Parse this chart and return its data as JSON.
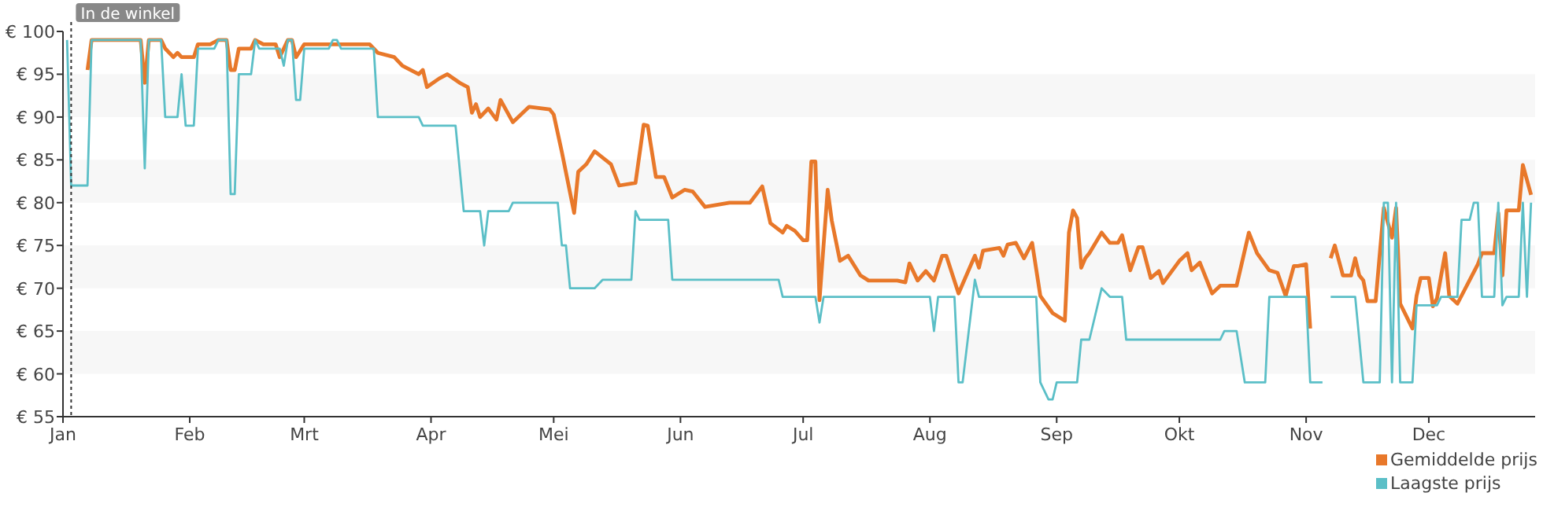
{
  "chart_data": {
    "type": "line",
    "xlim": [
      "--01-01",
      "--12-27"
    ],
    "xticks": [
      {
        "value": "--01-01",
        "label": "Jan"
      },
      {
        "value": "--02-01",
        "label": "Feb"
      },
      {
        "value": "--03-01",
        "label": "Mrt"
      },
      {
        "value": "--04-01",
        "label": "Apr"
      },
      {
        "value": "--05-01",
        "label": "Mei"
      },
      {
        "value": "--06-01",
        "label": "Jun"
      },
      {
        "value": "--07-01",
        "label": "Jul"
      },
      {
        "value": "--08-01",
        "label": "Aug"
      },
      {
        "value": "--09-01",
        "label": "Sep"
      },
      {
        "value": "--10-01",
        "label": "Okt"
      },
      {
        "value": "--11-01",
        "label": "Nov"
      },
      {
        "value": "--12-01",
        "label": "Dec"
      }
    ],
    "ylim": [
      55,
      100
    ],
    "yticks": [
      {
        "value": 55,
        "label": "€ 55"
      },
      {
        "value": 60,
        "label": "€ 60"
      },
      {
        "value": 65,
        "label": "€ 65"
      },
      {
        "value": 70,
        "label": "€ 70"
      },
      {
        "value": 75,
        "label": "€ 75"
      },
      {
        "value": 80,
        "label": "€ 80"
      },
      {
        "value": 85,
        "label": "€ 85"
      },
      {
        "value": 90,
        "label": "€ 90"
      },
      {
        "value": 95,
        "label": "€ 95"
      },
      {
        "value": 100,
        "label": "€ 100"
      }
    ],
    "legend": "bottom right",
    "bands": [
      {
        "axis": "y",
        "from": 60,
        "to": 65,
        "color": "#f7f7f7"
      },
      {
        "axis": "y",
        "from": 70,
        "to": 75,
        "color": "#f7f7f7"
      },
      {
        "axis": "y",
        "from": 80,
        "to": 85,
        "color": "#f7f7f7"
      },
      {
        "axis": "y",
        "from": 90,
        "to": 95,
        "color": "#f7f7f7"
      }
    ],
    "marker": "none",
    "line_style": "solid",
    "ref_lines": [
      {
        "axis": "x",
        "value": "--01-03",
        "label": "In de winkel",
        "line_style": "dotted",
        "color": "#333333"
      }
    ],
    "series": [
      {
        "name": "Gemiddelde prijs",
        "color": "#e8782a",
        "x": [
          "--01-07",
          "--01-08",
          "--01-20",
          "--01-21",
          "--01-22",
          "--01-25",
          "--01-26",
          "--01-28",
          "--01-29",
          "--01-30",
          "--02-02",
          "--02-03",
          "--02-06",
          "--02-08",
          "--02-10",
          "--02-11",
          "--02-12",
          "--02-13",
          "--02-16",
          "--02-17",
          "--02-19",
          "--02-22",
          "--02-23",
          "--02-25",
          "--02-26",
          "--02-27",
          "--03-01",
          "--03-17",
          "--03-19",
          "--03-23",
          "--03-25",
          "--03-29",
          "--03-30",
          "--03-31",
          "--04-03",
          "--04-05",
          "--04-08",
          "--04-10",
          "--04-11",
          "--04-12",
          "--04-13",
          "--04-15",
          "--04-17",
          "--04-18",
          "--04-21",
          "--04-25",
          "--04-30",
          "--05-01",
          "--05-03",
          "--05-06",
          "--05-07",
          "--05-09",
          "--05-11",
          "--05-15",
          "--05-17",
          "--05-21",
          "--05-23",
          "--05-24",
          "--05-26",
          "--05-28",
          "--05-30",
          "--06-02",
          "--06-04",
          "--06-07",
          "--06-13",
          "--06-15",
          "--06-18",
          "--06-21",
          "--06-23",
          "--06-26",
          "--06-27",
          "--06-29",
          "--07-01",
          "--07-02",
          "--07-03",
          "--07-04",
          "--07-05",
          "--07-07",
          "--07-08",
          "--07-10",
          "--07-12",
          "--07-15",
          "--07-17",
          "--07-24",
          "--07-26",
          "--07-27",
          "--07-29",
          "--07-31",
          "--08-02",
          "--08-04",
          "--08-05",
          "--08-08",
          "--08-12",
          "--08-13",
          "--08-14",
          "--08-18",
          "--08-19",
          "--08-20",
          "--08-22",
          "--08-24",
          "--08-26",
          "--08-28",
          "--08-31",
          "--09-03",
          "--09-04",
          "--09-05",
          "--09-06",
          "--09-07",
          "--09-08",
          "--09-09",
          "--09-12",
          "--09-14",
          "--09-16",
          "--09-17",
          "--09-19",
          "--09-21",
          "--09-22",
          "--09-24",
          "--09-26",
          "--09-27",
          "--10-01",
          "--10-03",
          "--10-04",
          "--10-06",
          "--10-09",
          "--10-11",
          "--10-15",
          "--10-18",
          "--10-20",
          "--10-23",
          "--10-25",
          "--10-27",
          "--10-29",
          "--10-30",
          "--11-01",
          "--11-02",
          "--11-05",
          "--11-07",
          "--11-08",
          "--11-10",
          "--11-12",
          "--11-13",
          "--11-14",
          "--11-15",
          "--11-16",
          "--11-18",
          "--11-20",
          "--11-22",
          "--11-23",
          "--11-24",
          "--11-27",
          "--11-28",
          "--11-29",
          "--12-01",
          "--12-02",
          "--12-03",
          "--12-05",
          "--12-06",
          "--12-08",
          "--12-13",
          "--12-14",
          "--12-17",
          "--12-18",
          "--12-19",
          "--12-20",
          "--12-23",
          "--12-24",
          "--12-26"
        ],
        "values": [
          95.5,
          99,
          99,
          94,
          99,
          99,
          98,
          97,
          97.5,
          97,
          97,
          98.5,
          98.5,
          99,
          99,
          95.5,
          95.5,
          98,
          98,
          99,
          98.5,
          98.5,
          97,
          99,
          99,
          97,
          98.5,
          98.5,
          97.5,
          97,
          96,
          95,
          95.5,
          93.5,
          94.5,
          95,
          94,
          93.5,
          90.5,
          91.5,
          90,
          91,
          89.7,
          92,
          89.4,
          91.2,
          90.9,
          90.3,
          85.9,
          78.8,
          83.6,
          84.5,
          86,
          84.5,
          82,
          82.3,
          89.1,
          89,
          83,
          83,
          80.6,
          81.5,
          81.3,
          79.5,
          80,
          80,
          80,
          81.9,
          77.6,
          76.5,
          77.3,
          76.7,
          75.6,
          75.6,
          84.8,
          84.8,
          68.6,
          81.5,
          77.9,
          73.2,
          73.8,
          71.5,
          70.9,
          70.9,
          70.7,
          72.9,
          70.9,
          72,
          70.9,
          73.8,
          73.8,
          69.4,
          73.8,
          72.4,
          74.4,
          74.7,
          73.8,
          75.1,
          75.3,
          73.5,
          75.3,
          69.1,
          67.1,
          66.2,
          76.5,
          79.1,
          78.2,
          72.4,
          73.5,
          74.1,
          76.5,
          75.3,
          75.3,
          76.2,
          72.1,
          74.8,
          74.8,
          71.2,
          72,
          70.6,
          73.2,
          74.1,
          72.1,
          73,
          69.4,
          70.3,
          70.3,
          76.5,
          74.1,
          72.1,
          71.8,
          69.1,
          72.6,
          72.6,
          72.8,
          65.3,
          null,
          73.5,
          75,
          71.5,
          71.5,
          73.5,
          71.5,
          70.9,
          68.5,
          68.5,
          79.4,
          75.9,
          79.4,
          68.2,
          65.3,
          69.1,
          71.2,
          71.2,
          67.9,
          68.8,
          74.1,
          69.1,
          68.2,
          72.8,
          74.1,
          74.1,
          78.8,
          71.5,
          79.1,
          79.1,
          84.4,
          80.9
        ]
      },
      {
        "name": "Laagste prijs",
        "color": "#5bbfc7",
        "x": [
          "--01-02",
          "--01-03",
          "--01-07",
          "--01-08",
          "--01-20",
          "--01-21",
          "--01-22",
          "--01-25",
          "--01-26",
          "--01-29",
          "--01-30",
          "--01-31",
          "--02-02",
          "--02-03",
          "--02-07",
          "--02-08",
          "--02-10",
          "--02-11",
          "--02-12",
          "--02-13",
          "--02-16",
          "--02-17",
          "--02-18",
          "--02-23",
          "--02-24",
          "--02-25",
          "--02-26",
          "--02-27",
          "--02-28",
          "--03-01",
          "--03-07",
          "--03-08",
          "--03-09",
          "--03-10",
          "--03-18",
          "--03-19",
          "--03-29",
          "--03-30",
          "--04-07",
          "--04-09",
          "--04-13",
          "--04-14",
          "--04-15",
          "--04-20",
          "--04-21",
          "--05-02",
          "--05-03",
          "--05-04",
          "--05-05",
          "--05-11",
          "--05-13",
          "--05-20",
          "--05-21",
          "--05-22",
          "--05-29",
          "--05-30",
          "--06-25",
          "--06-26",
          "--07-04",
          "--07-05",
          "--07-06",
          "--08-01",
          "--08-02",
          "--08-03",
          "--08-07",
          "--08-08",
          "--08-09",
          "--08-12",
          "--08-13",
          "--08-27",
          "--08-28",
          "--08-30",
          "--08-31",
          "--09-01",
          "--09-06",
          "--09-07",
          "--09-09",
          "--09-10",
          "--09-11",
          "--09-12",
          "--09-14",
          "--09-17",
          "--09-18",
          "--10-11",
          "--10-12",
          "--10-15",
          "--10-17",
          "--10-22",
          "--10-23",
          "--11-01",
          "--11-02",
          "--11-05",
          "--11-06",
          "--11-07",
          "--11-13",
          "--11-15",
          "--11-19",
          "--11-20",
          "--11-21",
          "--11-22",
          "--11-23",
          "--11-24",
          "--11-27",
          "--11-28",
          "--12-03",
          "--12-04",
          "--12-08",
          "--12-09",
          "--12-11",
          "--12-12",
          "--12-13",
          "--12-14",
          "--12-17",
          "--12-18",
          "--12-19",
          "--12-20",
          "--12-23",
          "--12-24",
          "--12-25",
          "--12-26"
        ],
        "values": [
          99,
          82,
          82,
          99,
          99,
          84,
          99,
          99,
          90,
          90,
          95,
          89,
          89,
          98,
          98,
          99,
          99,
          81,
          81,
          95,
          95,
          99,
          98,
          98,
          96,
          99,
          99,
          92,
          92,
          98,
          98,
          99,
          99,
          98,
          98,
          90,
          90,
          89,
          89,
          79,
          79,
          75,
          79,
          79,
          80,
          80,
          75,
          75,
          70,
          70,
          71,
          71,
          79,
          78,
          78,
          71,
          71,
          69,
          69,
          66,
          69,
          69,
          65,
          69,
          69,
          59,
          59,
          71,
          69,
          69,
          59,
          57,
          57,
          59,
          59,
          64,
          64,
          66,
          68,
          70,
          69,
          69,
          64,
          64,
          65,
          65,
          59,
          59,
          69,
          69,
          59,
          59,
          null,
          69,
          69,
          59,
          59,
          80,
          80,
          59,
          80,
          59,
          59,
          68,
          68,
          69,
          69,
          78,
          78,
          80,
          80,
          69,
          69,
          80,
          68,
          69,
          69,
          80,
          69,
          80
        ]
      }
    ]
  }
}
